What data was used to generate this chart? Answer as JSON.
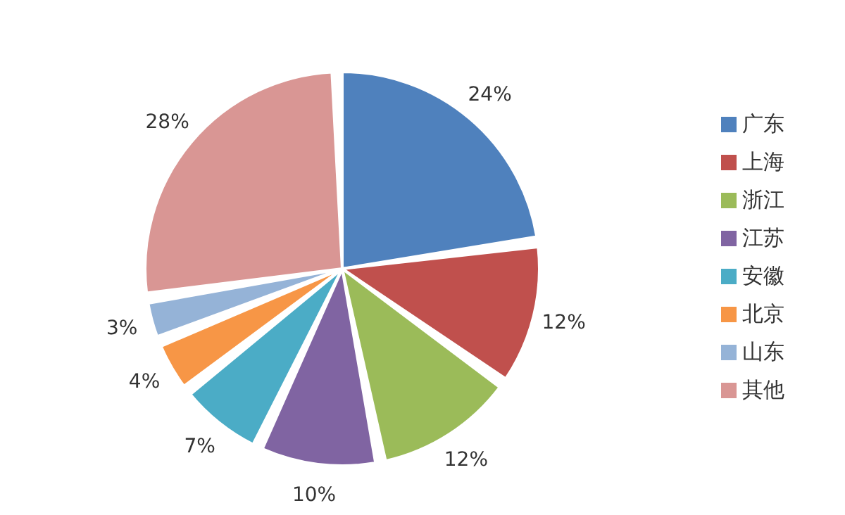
{
  "chart_data": {
    "type": "pie",
    "categories": [
      "广东",
      "上海",
      "浙江",
      "江苏",
      "安徽",
      "北京",
      "山东",
      "其他"
    ],
    "values": [
      24,
      12,
      12,
      10,
      7,
      4,
      3,
      28
    ],
    "value_labels": [
      "24%",
      "12%",
      "12%",
      "10%",
      "7%",
      "4%",
      "3%",
      "28%"
    ],
    "colors": [
      "#4f81bd",
      "#c0504d",
      "#9bbb59",
      "#8064a2",
      "#4bacc6",
      "#f79646",
      "#95b3d7",
      "#d99694"
    ],
    "legend": "right"
  }
}
